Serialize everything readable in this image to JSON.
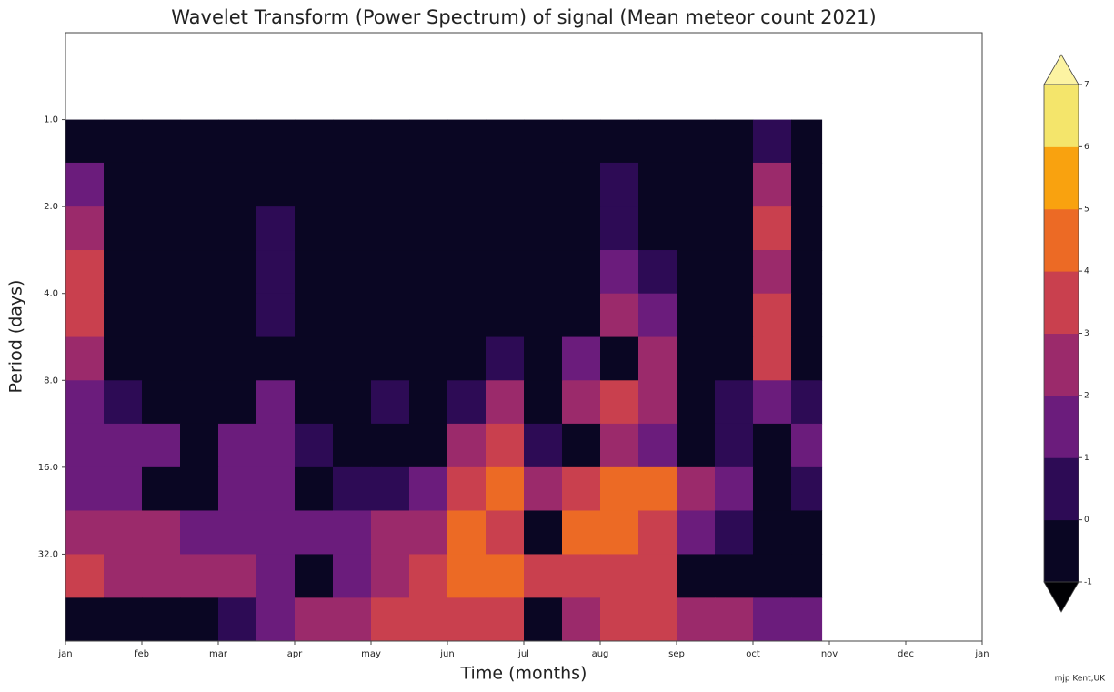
{
  "chart_data": {
    "type": "contour",
    "title": "Wavelet Transform (Power Spectrum) of signal (Mean meteor count 2021)",
    "xlabel": "Time (months)",
    "ylabel": "Period (days)",
    "xlim": [
      0,
      12
    ],
    "xticks": [
      {
        "value": 0,
        "label": "jan"
      },
      {
        "value": 1,
        "label": "feb"
      },
      {
        "value": 2,
        "label": "mar"
      },
      {
        "value": 3,
        "label": "apr"
      },
      {
        "value": 4,
        "label": "may"
      },
      {
        "value": 5,
        "label": "jun"
      },
      {
        "value": 6,
        "label": "jul"
      },
      {
        "value": 7,
        "label": "aug"
      },
      {
        "value": 8,
        "label": "sep"
      },
      {
        "value": 9,
        "label": "oct"
      },
      {
        "value": 10,
        "label": "nov"
      },
      {
        "value": 11,
        "label": "dec"
      },
      {
        "value": 12,
        "label": "jan"
      }
    ],
    "ylim": [
      0.5,
      64
    ],
    "y_scale": "log2",
    "y_inverted": true,
    "yticks": [
      {
        "value": 1,
        "label": "1.0"
      },
      {
        "value": 2,
        "label": "2.0"
      },
      {
        "value": 4,
        "label": "4.0"
      },
      {
        "value": 8,
        "label": "8.0"
      },
      {
        "value": 16,
        "label": "16.0"
      },
      {
        "value": 32,
        "label": "32.0"
      }
    ],
    "x_edges": [
      0,
      0.5,
      1,
      1.5,
      2,
      2.5,
      3,
      3.5,
      4,
      4.5,
      5,
      5.5,
      6,
      6.5,
      7,
      7.5,
      8,
      8.5,
      9,
      9.5,
      9.9
    ],
    "y_edges": [
      1,
      1.41,
      2,
      2.83,
      4,
      5.66,
      8,
      11.3,
      16,
      22.6,
      32,
      45.3,
      64
    ],
    "z": [
      [
        -0.5,
        -0.5,
        -0.5,
        -0.5,
        -0.5,
        -0.5,
        -0.5,
        -0.5,
        -0.5,
        -0.5,
        -0.5,
        -0.5,
        -0.5,
        -0.5,
        -0.5,
        -0.5,
        -0.5,
        -0.5,
        0.5,
        -0.5
      ],
      [
        1.5,
        -0.5,
        -0.5,
        -0.5,
        -0.5,
        -0.5,
        -0.5,
        -0.5,
        -0.5,
        -0.5,
        -0.5,
        -0.5,
        -0.5,
        -0.5,
        0.5,
        -0.5,
        -0.5,
        -0.5,
        2.5,
        -0.5
      ],
      [
        2.5,
        -0.5,
        -0.5,
        -0.5,
        -0.5,
        0.5,
        -0.5,
        -0.5,
        -0.5,
        -0.5,
        -0.5,
        -0.5,
        -0.5,
        -0.5,
        0.5,
        -0.5,
        -0.5,
        -0.5,
        3.5,
        -0.5
      ],
      [
        3.5,
        -0.5,
        -0.5,
        -0.5,
        -0.5,
        0.5,
        -0.5,
        -0.5,
        -0.5,
        -0.5,
        -0.5,
        -0.5,
        -0.5,
        -0.5,
        1.5,
        0.5,
        -0.5,
        -0.5,
        2.5,
        -0.5
      ],
      [
        3.5,
        -0.5,
        -0.5,
        -0.5,
        -0.5,
        0.5,
        -0.5,
        -0.5,
        -0.5,
        -0.5,
        -0.5,
        -0.5,
        -0.5,
        -0.5,
        2.5,
        1.5,
        -0.5,
        -0.5,
        3.5,
        -0.5
      ],
      [
        2.5,
        -0.5,
        -0.5,
        -0.5,
        -0.5,
        -0.5,
        -0.5,
        -0.5,
        -0.5,
        -0.5,
        -0.5,
        0.5,
        -0.5,
        1.5,
        -0.5,
        2.5,
        -0.5,
        -0.5,
        3.5,
        -0.5
      ],
      [
        1.5,
        0.5,
        -0.5,
        -0.5,
        -0.5,
        1.5,
        -0.5,
        -0.5,
        0.5,
        -0.5,
        0.5,
        2.5,
        -0.5,
        2.5,
        3.5,
        2.5,
        -0.5,
        0.5,
        1.5,
        0.5
      ],
      [
        1.5,
        1.5,
        1.5,
        -0.5,
        1.5,
        1.5,
        0.5,
        -0.5,
        -0.5,
        -0.5,
        2.5,
        3.5,
        0.5,
        -0.5,
        2.5,
        1.5,
        -0.5,
        0.5,
        -0.5,
        1.5
      ],
      [
        1.5,
        1.5,
        -0.5,
        -0.5,
        1.5,
        1.5,
        -0.5,
        0.5,
        0.5,
        1.5,
        3.5,
        4.5,
        2.5,
        3.5,
        4.5,
        4.5,
        2.5,
        1.5,
        -0.5,
        0.5
      ],
      [
        2.5,
        2.5,
        2.5,
        1.5,
        1.5,
        1.5,
        1.5,
        1.5,
        2.5,
        2.5,
        4.5,
        3.5,
        -0.5,
        4.5,
        4.5,
        3.5,
        1.5,
        0.5,
        -0.5,
        -0.5
      ],
      [
        3.5,
        2.5,
        2.5,
        2.5,
        2.5,
        1.5,
        -0.5,
        1.5,
        2.5,
        3.5,
        4.5,
        4.5,
        3.5,
        3.5,
        3.5,
        3.5,
        -0.5,
        -0.5,
        -0.5,
        -0.5
      ],
      [
        -0.5,
        -0.5,
        -0.5,
        -0.5,
        0.5,
        1.5,
        2.5,
        2.5,
        3.5,
        3.5,
        3.5,
        3.5,
        -0.5,
        2.5,
        3.5,
        3.5,
        2.5,
        2.5,
        1.5,
        1.5
      ]
    ],
    "levels": [
      -1,
      0,
      1,
      2,
      3,
      4,
      5,
      6,
      7
    ],
    "colors": [
      "#0a0623",
      "#2d0b55",
      "#6b1c7c",
      "#9b2a6b",
      "#c9404e",
      "#ec6a25",
      "#f9a20f",
      "#f4e56b"
    ],
    "over_color": "#fcf3a2",
    "under_color": "#000004",
    "colorbar_ticks": [
      -1,
      0,
      1,
      2,
      3,
      4,
      5,
      6,
      7
    ],
    "credit": "mjp Kent,UK"
  }
}
